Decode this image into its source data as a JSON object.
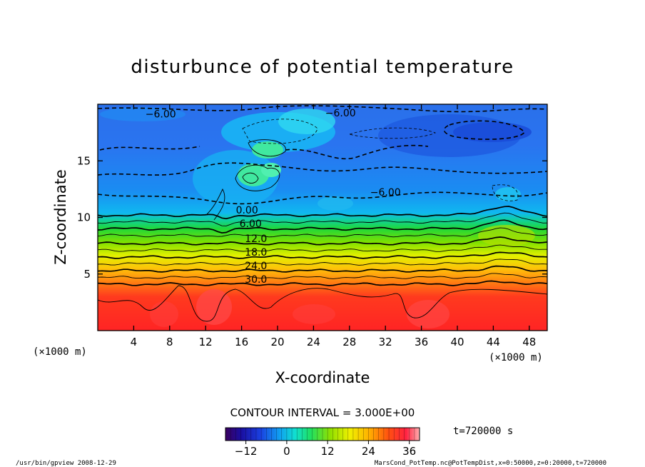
{
  "chart_data": {
    "type": "heatmap",
    "title": "disturbunce of potential temperature",
    "xlabel": "X-coordinate",
    "ylabel": "Z-coordinate",
    "x_unit_left": "(×1000 m)",
    "x_unit_right": "(×1000 m)",
    "xlim": [
      0,
      50
    ],
    "ylim": [
      0,
      20
    ],
    "x_ticks": [
      4,
      8,
      12,
      16,
      20,
      24,
      28,
      32,
      36,
      40,
      44,
      48
    ],
    "y_ticks": [
      5,
      10,
      15
    ],
    "contour_interval_text": "CONTOUR INTERVAL = 3.000E+00",
    "time_text": "t=720000 s",
    "colorbar": {
      "min": -18,
      "max": 39,
      "tick_values": [
        -12,
        0,
        12,
        24,
        36
      ],
      "tick_labels": [
        "−12",
        "0",
        "12",
        "24",
        "36"
      ]
    },
    "contour_labels": [
      {
        "text": "−6.00",
        "x": 7,
        "z": 18.9
      },
      {
        "text": "−6.00",
        "x": 27,
        "z": 19.0
      },
      {
        "text": "−6.00",
        "x": 32,
        "z": 12.0
      },
      {
        "text": "0.00",
        "x": 16.6,
        "z": 10.4
      },
      {
        "text": "6.00",
        "x": 17,
        "z": 9.2
      },
      {
        "text": "12.0",
        "x": 17.6,
        "z": 7.9
      },
      {
        "text": "18.0",
        "x": 17.6,
        "z": 6.7
      },
      {
        "text": "24.0",
        "x": 17.6,
        "z": 5.5
      },
      {
        "text": "30.0",
        "x": 17.6,
        "z": 4.3
      }
    ],
    "contour_levels": [
      {
        "value": 0,
        "z": 10.2
      },
      {
        "value": 3,
        "z": 9.6
      },
      {
        "value": 6,
        "z": 9.0
      },
      {
        "value": 9,
        "z": 8.4
      },
      {
        "value": 12,
        "z": 7.7
      },
      {
        "value": 15,
        "z": 7.1
      },
      {
        "value": 18,
        "z": 6.5
      },
      {
        "value": 21,
        "z": 5.9
      },
      {
        "value": 24,
        "z": 5.3
      },
      {
        "value": 27,
        "z": 4.7
      },
      {
        "value": 30,
        "z": 4.1
      }
    ]
  },
  "footer": {
    "left": "/usr/bin/gpview   2008-12-29",
    "right": "MarsCond_PotTemp.nc@PotTempDist,x=0:50000,z=0:20000,t=720000"
  }
}
